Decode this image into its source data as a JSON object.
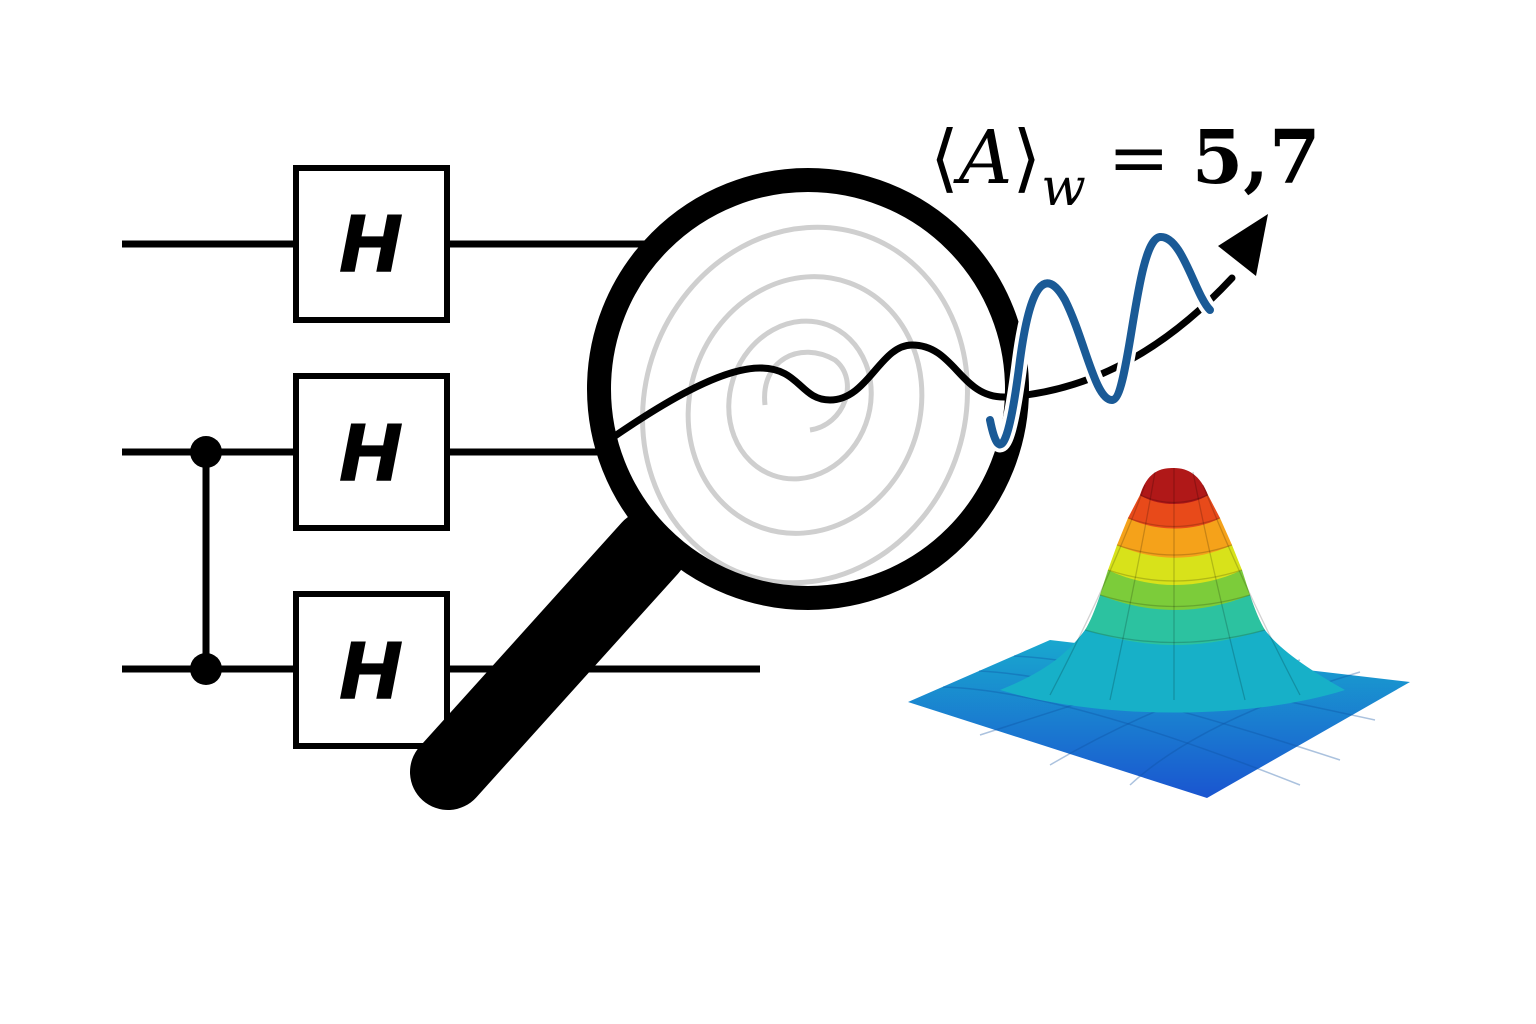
{
  "circuit": {
    "gates": [
      {
        "label": "H"
      },
      {
        "label": "H"
      },
      {
        "label": "H"
      }
    ]
  },
  "formula": {
    "open_bracket": "⟨",
    "operator": "A",
    "close_bracket": "⟩",
    "subscript": "w",
    "equals": "=",
    "value": "5,7"
  },
  "colors": {
    "line": "#000000",
    "wave_blue": "#1a5a96",
    "swirl_gray": "#cfcfcf",
    "gaussian_top": "#b01818",
    "gaussian_base": "#1a6fd0"
  },
  "icons": {
    "magnifier": "magnifier-icon"
  }
}
